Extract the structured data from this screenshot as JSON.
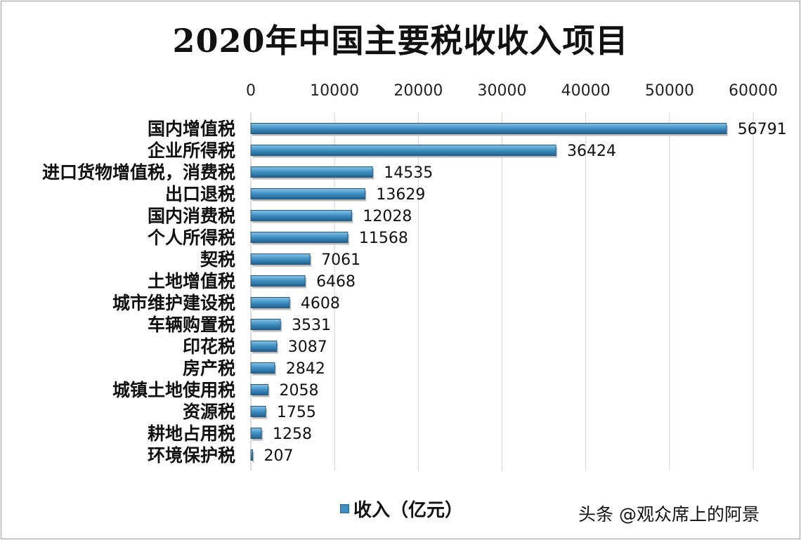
{
  "chart_data": {
    "type": "bar",
    "orientation": "horizontal",
    "title": "2020年中国主要税收收入项目",
    "categories": [
      "国内增值税",
      "企业所得税",
      "进口货物增值税，消费税",
      "出口退税",
      "国内消费税",
      "个人所得税",
      "契税",
      "土地增值税",
      "城市维护建设税",
      "车辆购置税",
      "印花税",
      "房产税",
      "城镇土地使用税",
      "资源税",
      "耕地占用税",
      "环境保护税"
    ],
    "series": [
      {
        "name": "收入（亿元）",
        "values": [
          56791,
          36424,
          14535,
          13629,
          12028,
          11568,
          7061,
          6468,
          4608,
          3531,
          3087,
          2842,
          2058,
          1755,
          1258,
          207
        ]
      }
    ],
    "xlim": [
      0,
      60000
    ],
    "x_ticks": [
      0,
      10000,
      20000,
      30000,
      40000,
      50000,
      60000
    ],
    "x_axis_position": "top",
    "grid": true,
    "legend_position": "bottom",
    "bar_color": "#3f8fc2"
  },
  "legend": {
    "label": "收入（亿元）"
  },
  "watermark": "头条 @观众席上的阿景"
}
